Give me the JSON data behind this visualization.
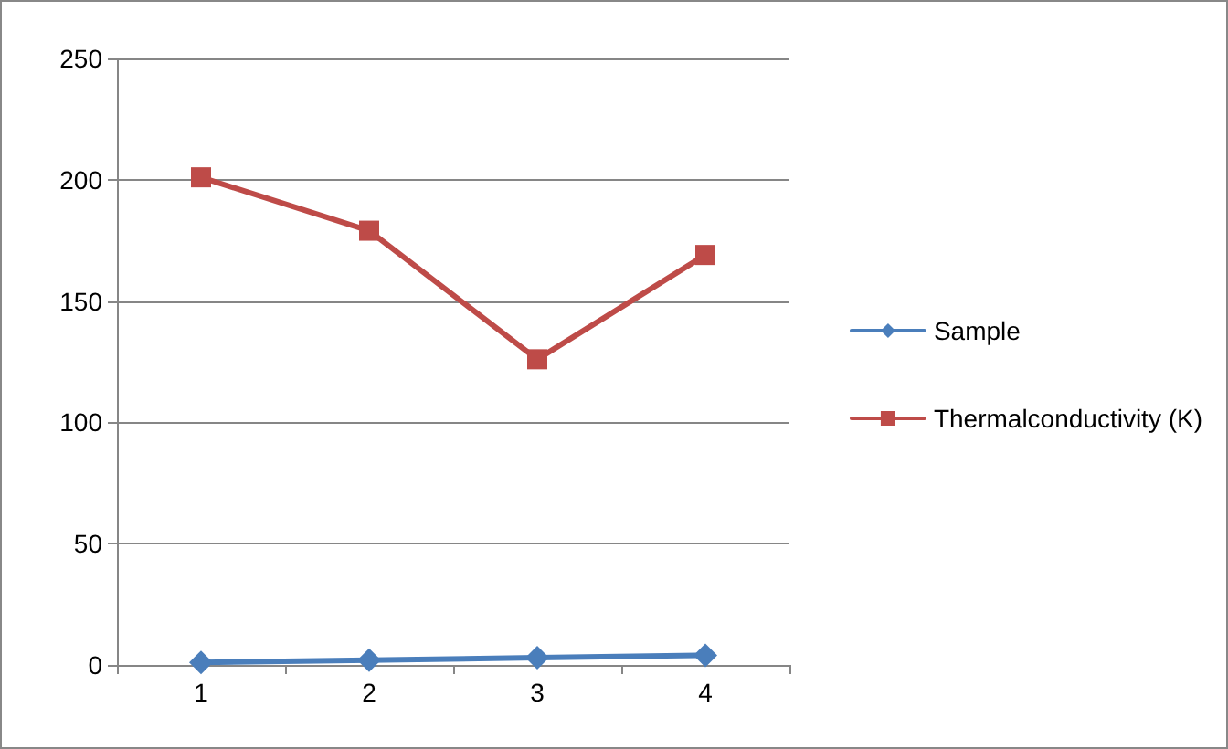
{
  "chart_data": {
    "type": "line",
    "categories": [
      "1",
      "2",
      "3",
      "4"
    ],
    "series": [
      {
        "name": "Sample",
        "color": "#4a7ebb",
        "marker": "diamond",
        "values": [
          1,
          2,
          3,
          4
        ]
      },
      {
        "name": "Thermalconductivity (K)",
        "color": "#be4b48",
        "marker": "square",
        "values": [
          201,
          179,
          126,
          169
        ]
      }
    ],
    "ylim": [
      0,
      250
    ],
    "yticks": [
      0,
      50,
      100,
      150,
      200,
      250
    ],
    "grid": "y",
    "legend": "right"
  }
}
